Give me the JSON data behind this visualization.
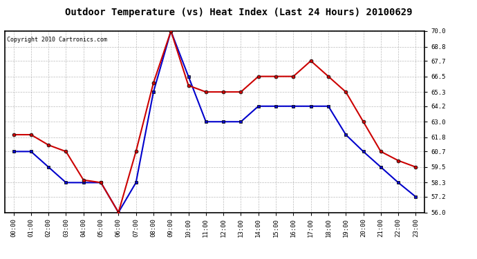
{
  "title": "Outdoor Temperature (vs) Heat Index (Last 24 Hours) 20100629",
  "copyright_text": "Copyright 2010 Cartronics.com",
  "hours": [
    "00:00",
    "01:00",
    "02:00",
    "03:00",
    "04:00",
    "05:00",
    "06:00",
    "07:00",
    "08:00",
    "09:00",
    "10:00",
    "11:00",
    "12:00",
    "13:00",
    "14:00",
    "15:00",
    "16:00",
    "17:00",
    "18:00",
    "19:00",
    "20:00",
    "21:00",
    "22:00",
    "23:00"
  ],
  "temp_blue": [
    60.7,
    60.7,
    59.5,
    58.3,
    58.3,
    58.3,
    56.0,
    58.3,
    65.3,
    70.0,
    66.5,
    63.0,
    63.0,
    63.0,
    64.2,
    64.2,
    64.2,
    64.2,
    64.2,
    62.0,
    60.7,
    59.5,
    58.3,
    57.2
  ],
  "heat_red": [
    62.0,
    62.0,
    61.2,
    60.7,
    58.5,
    58.3,
    56.0,
    60.7,
    66.0,
    70.0,
    65.8,
    65.3,
    65.3,
    65.3,
    66.5,
    66.5,
    66.5,
    67.7,
    66.5,
    65.3,
    63.0,
    60.7,
    60.0,
    59.5
  ],
  "ylim": [
    56.0,
    70.0
  ],
  "yticks": [
    56.0,
    57.2,
    58.3,
    59.5,
    60.7,
    61.8,
    63.0,
    64.2,
    65.3,
    66.5,
    67.7,
    68.8,
    70.0
  ],
  "blue_color": "#0000cc",
  "red_color": "#cc0000",
  "bg_color": "#ffffff",
  "grid_color": "#aaaaaa",
  "title_fontsize": 10,
  "copyright_fontsize": 6
}
